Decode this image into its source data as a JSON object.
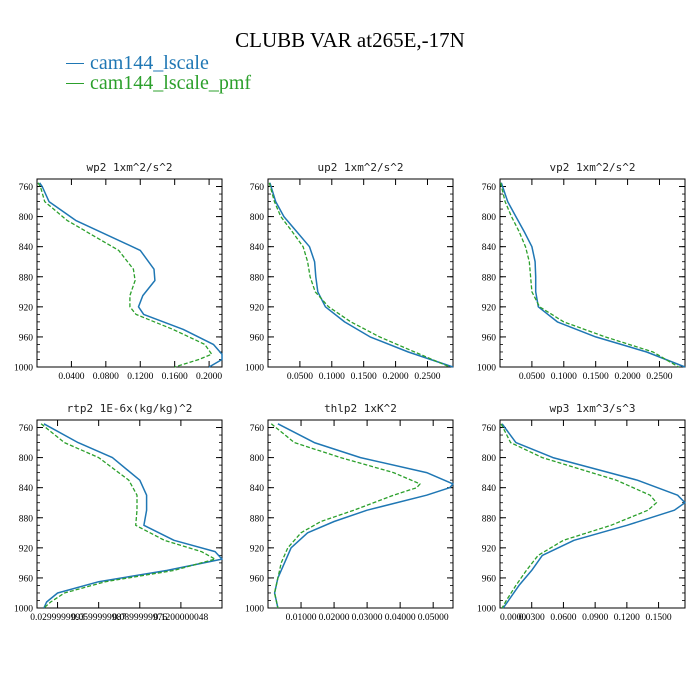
{
  "title": "CLUBB VAR at265E,-17N",
  "legend": [
    {
      "label": "cam144_lscale",
      "color": "#1f77b4",
      "dash": "solid"
    },
    {
      "label": "cam144_lscale_pmf",
      "color": "#2ca02c",
      "dash": "dashed"
    }
  ],
  "chart_data": [
    {
      "type": "line",
      "title": "wp2  1xm^2/s^2",
      "ylim": [
        1000,
        750
      ],
      "yticks": [
        "760",
        "800",
        "840",
        "880",
        "920",
        "960",
        "1000"
      ],
      "xlim": [
        0.0,
        0.215
      ],
      "xticks": [
        "0.0400",
        "0.0800",
        "0.1200",
        "0.1600",
        "0.2000"
      ],
      "y": [
        755,
        760,
        780,
        805,
        845,
        870,
        885,
        905,
        920,
        930,
        950,
        970,
        983,
        990,
        1000
      ],
      "series": [
        {
          "name": "cam144_lscale",
          "values": [
            0.003,
            0.006,
            0.014,
            0.045,
            0.12,
            0.136,
            0.137,
            0.123,
            0.118,
            0.124,
            0.17,
            0.205,
            0.215,
            0.215,
            0.2
          ]
        },
        {
          "name": "cam144_lscale_pmf",
          "values": [
            0.001,
            0.004,
            0.009,
            0.035,
            0.095,
            0.112,
            0.114,
            0.108,
            0.108,
            0.115,
            0.158,
            0.195,
            0.203,
            0.188,
            0.16
          ]
        }
      ]
    },
    {
      "type": "line",
      "title": "up2  1xm^2/s^2",
      "ylim": [
        1000,
        750
      ],
      "yticks": [
        "760",
        "800",
        "840",
        "880",
        "920",
        "960",
        "1000"
      ],
      "xlim": [
        0.0,
        0.29
      ],
      "xticks": [
        "0.0500",
        "0.1000",
        "0.1500",
        "0.2000",
        "0.2500"
      ],
      "y": [
        755,
        780,
        800,
        820,
        840,
        860,
        880,
        900,
        920,
        940,
        960,
        980,
        1000
      ],
      "series": [
        {
          "name": "cam144_lscale",
          "values": [
            0.003,
            0.012,
            0.025,
            0.045,
            0.065,
            0.073,
            0.075,
            0.078,
            0.09,
            0.12,
            0.16,
            0.22,
            0.29
          ]
        },
        {
          "name": "cam144_lscale_pmf",
          "values": [
            0.002,
            0.01,
            0.02,
            0.038,
            0.055,
            0.062,
            0.066,
            0.074,
            0.095,
            0.13,
            0.175,
            0.23,
            0.285
          ]
        }
      ]
    },
    {
      "type": "line",
      "title": "vp2  1xm^2/s^2",
      "ylim": [
        1000,
        750
      ],
      "yticks": [
        "760",
        "800",
        "840",
        "880",
        "920",
        "960",
        "1000"
      ],
      "xlim": [
        0.0,
        0.29
      ],
      "xticks": [
        "0.0500",
        "0.1000",
        "0.1500",
        "0.2000",
        "0.2500"
      ],
      "y": [
        755,
        780,
        800,
        820,
        840,
        860,
        880,
        900,
        920,
        940,
        960,
        980,
        1000
      ],
      "series": [
        {
          "name": "cam144_lscale",
          "values": [
            0.002,
            0.012,
            0.025,
            0.038,
            0.05,
            0.055,
            0.056,
            0.056,
            0.06,
            0.09,
            0.15,
            0.23,
            0.29
          ]
        },
        {
          "name": "cam144_lscale_pmf",
          "values": [
            0.001,
            0.008,
            0.018,
            0.03,
            0.04,
            0.046,
            0.048,
            0.05,
            0.062,
            0.1,
            0.165,
            0.24,
            0.28
          ]
        }
      ]
    },
    {
      "type": "line",
      "title": "rtp2  1E-6x(kg/kg)^2",
      "ylim": [
        1000,
        750
      ],
      "yticks": [
        "760",
        "800",
        "840",
        "880",
        "920",
        "960",
        "1000"
      ],
      "xlim": [
        0.015,
        0.15
      ],
      "xticks": [
        "0.0299999993",
        "0.0599999987",
        "0.0899999976",
        "0.1200000048"
      ],
      "y": [
        755,
        780,
        800,
        830,
        850,
        870,
        890,
        910,
        925,
        935,
        950,
        965,
        980,
        992,
        1000
      ],
      "series": [
        {
          "name": "cam144_lscale",
          "values": [
            0.02,
            0.045,
            0.07,
            0.09,
            0.095,
            0.095,
            0.093,
            0.115,
            0.145,
            0.15,
            0.11,
            0.06,
            0.03,
            0.022,
            0.02
          ]
        },
        {
          "name": "cam144_lscale_pmf",
          "values": [
            0.018,
            0.035,
            0.06,
            0.082,
            0.088,
            0.088,
            0.087,
            0.108,
            0.135,
            0.145,
            0.115,
            0.065,
            0.035,
            0.025,
            0.02
          ]
        }
      ]
    },
    {
      "type": "line",
      "title": "thlp2  1xK^2",
      "ylim": [
        1000,
        750
      ],
      "yticks": [
        "760",
        "800",
        "840",
        "880",
        "920",
        "960",
        "1000"
      ],
      "xlim": [
        0.0,
        0.056
      ],
      "xticks": [
        "0.01000",
        "0.02000",
        "0.03000",
        "0.04000",
        "0.05000"
      ],
      "y": [
        755,
        780,
        800,
        820,
        835,
        840,
        850,
        870,
        885,
        900,
        920,
        940,
        960,
        980,
        1000
      ],
      "series": [
        {
          "name": "cam144_lscale",
          "values": [
            0.003,
            0.014,
            0.028,
            0.048,
            0.056,
            0.055,
            0.048,
            0.03,
            0.02,
            0.012,
            0.007,
            0.005,
            0.003,
            0.002,
            0.003
          ]
        },
        {
          "name": "cam144_lscale_pmf",
          "values": [
            0.001,
            0.008,
            0.022,
            0.038,
            0.046,
            0.045,
            0.038,
            0.026,
            0.016,
            0.01,
            0.006,
            0.004,
            0.003,
            0.002,
            0.003
          ]
        }
      ]
    },
    {
      "type": "line",
      "title": "wp3  1xm^3/s^3",
      "ylim": [
        1000,
        750
      ],
      "yticks": [
        "760",
        "800",
        "840",
        "880",
        "920",
        "960",
        "1000"
      ],
      "xlim": [
        0.0,
        0.175
      ],
      "xticks": [
        "0.0000",
        "0.0300",
        "0.0600",
        "0.0900",
        "0.1200",
        "0.1500"
      ],
      "y": [
        755,
        780,
        800,
        830,
        850,
        860,
        870,
        890,
        910,
        930,
        950,
        970,
        990,
        1000
      ],
      "series": [
        {
          "name": "cam144_lscale",
          "values": [
            0.002,
            0.015,
            0.05,
            0.13,
            0.168,
            0.175,
            0.165,
            0.12,
            0.07,
            0.04,
            0.03,
            0.018,
            0.008,
            0.003
          ]
        },
        {
          "name": "cam144_lscale_pmf",
          "values": [
            0.001,
            0.01,
            0.04,
            0.11,
            0.142,
            0.148,
            0.14,
            0.105,
            0.06,
            0.036,
            0.025,
            0.015,
            0.006,
            0.002
          ]
        }
      ]
    }
  ]
}
